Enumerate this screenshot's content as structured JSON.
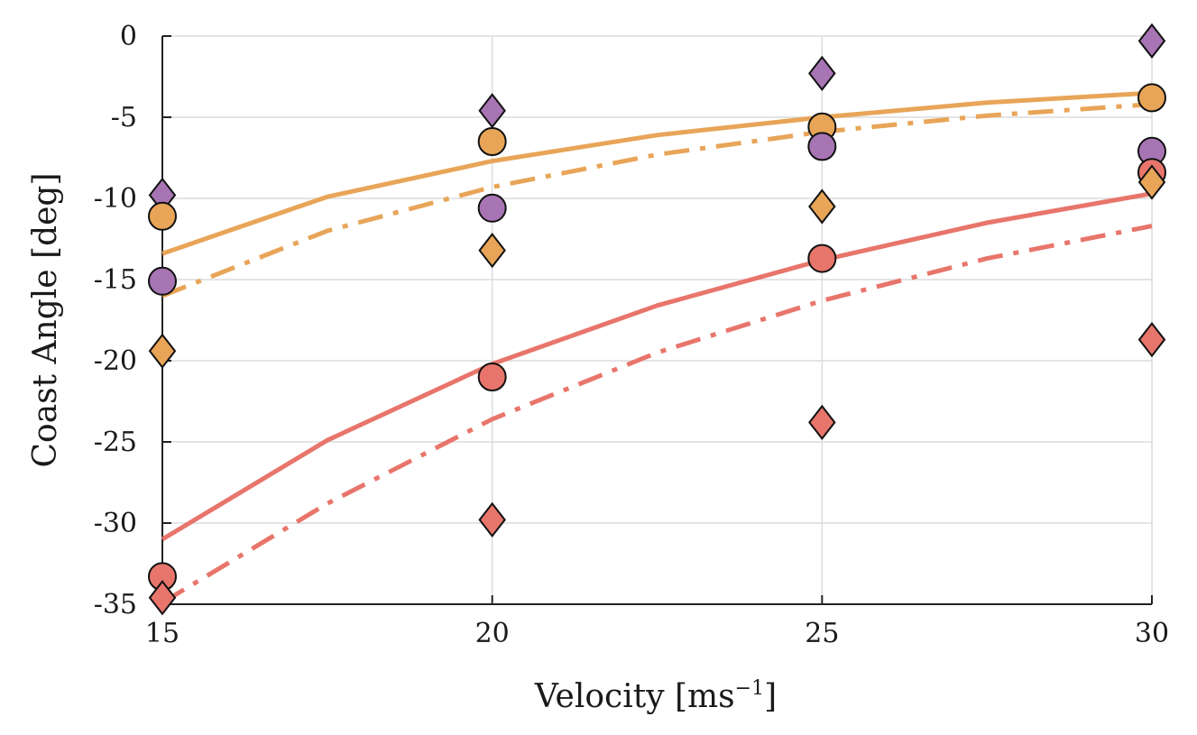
{
  "chart_data": {
    "type": "line",
    "xlabel_main": "Velocity ",
    "xlabel_bracket_open": "[",
    "xlabel_unit": "ms",
    "xlabel_sup": "−1",
    "xlabel_bracket_close": "]",
    "ylabel": "Coast Angle [deg]",
    "xlim": [
      15,
      30
    ],
    "ylim": [
      -35,
      0
    ],
    "x_ticks": [
      15,
      20,
      25,
      30
    ],
    "y_ticks": [
      0,
      -5,
      -10,
      -15,
      -20,
      -25,
      -30,
      -35
    ],
    "grid": true,
    "lines": [
      {
        "color": "#E8A558",
        "dash": "solid",
        "x": [
          15,
          17.5,
          20,
          22.5,
          25,
          27.5,
          30
        ],
        "y": [
          -13.4,
          -9.9,
          -7.7,
          -6.1,
          -5.0,
          -4.1,
          -3.5
        ]
      },
      {
        "color": "#E8A558",
        "dash": "dashdot",
        "x": [
          15,
          17.5,
          20,
          22.5,
          25,
          27.5,
          30
        ],
        "y": [
          -16.0,
          -12.0,
          -9.3,
          -7.3,
          -5.9,
          -4.9,
          -4.2
        ]
      },
      {
        "color": "#E8756B",
        "dash": "solid",
        "x": [
          15,
          17.5,
          20,
          22.5,
          25,
          27.5,
          30
        ],
        "y": [
          -31.0,
          -24.9,
          -20.2,
          -16.6,
          -13.8,
          -11.5,
          -9.7
        ]
      },
      {
        "color": "#E8756B",
        "dash": "dashdot",
        "x": [
          15,
          17.5,
          20,
          22.5,
          25,
          27.5,
          30
        ],
        "y": [
          -34.9,
          -28.8,
          -23.6,
          -19.5,
          -16.3,
          -13.7,
          -11.7
        ]
      }
    ],
    "markers": [
      {
        "shape": "diamond",
        "color": "#A875B4",
        "x": 15,
        "y": -9.8
      },
      {
        "shape": "circle",
        "color": "#E8A558",
        "x": 15,
        "y": -11.1
      },
      {
        "shape": "circle",
        "color": "#A875B4",
        "x": 15,
        "y": -15.1
      },
      {
        "shape": "diamond",
        "color": "#E8A558",
        "x": 15,
        "y": -19.4
      },
      {
        "shape": "circle",
        "color": "#E8756B",
        "x": 15,
        "y": -33.3
      },
      {
        "shape": "diamond",
        "color": "#E8756B",
        "x": 15,
        "y": -34.6
      },
      {
        "shape": "diamond",
        "color": "#A875B4",
        "x": 20,
        "y": -4.6
      },
      {
        "shape": "circle",
        "color": "#E8A558",
        "x": 20,
        "y": -6.5
      },
      {
        "shape": "circle",
        "color": "#A875B4",
        "x": 20,
        "y": -10.6
      },
      {
        "shape": "diamond",
        "color": "#E8A558",
        "x": 20,
        "y": -13.2
      },
      {
        "shape": "circle",
        "color": "#E8756B",
        "x": 20,
        "y": -21.0
      },
      {
        "shape": "diamond",
        "color": "#E8756B",
        "x": 20,
        "y": -29.8
      },
      {
        "shape": "diamond",
        "color": "#A875B4",
        "x": 25,
        "y": -2.3
      },
      {
        "shape": "circle",
        "color": "#E8A558",
        "x": 25,
        "y": -5.6
      },
      {
        "shape": "circle",
        "color": "#A875B4",
        "x": 25,
        "y": -6.8
      },
      {
        "shape": "diamond",
        "color": "#E8A558",
        "x": 25,
        "y": -10.5
      },
      {
        "shape": "circle",
        "color": "#E8756B",
        "x": 25,
        "y": -13.7
      },
      {
        "shape": "diamond",
        "color": "#E8756B",
        "x": 25,
        "y": -23.8
      },
      {
        "shape": "diamond",
        "color": "#A875B4",
        "x": 30,
        "y": -0.3
      },
      {
        "shape": "circle",
        "color": "#E8A558",
        "x": 30,
        "y": -3.8
      },
      {
        "shape": "circle",
        "color": "#A875B4",
        "x": 30,
        "y": -7.1
      },
      {
        "shape": "circle",
        "color": "#E8756B",
        "x": 30,
        "y": -8.4
      },
      {
        "shape": "diamond",
        "color": "#E8A558",
        "x": 30,
        "y": -9.0
      },
      {
        "shape": "diamond",
        "color": "#E8756B",
        "x": 30,
        "y": -18.7
      }
    ]
  }
}
